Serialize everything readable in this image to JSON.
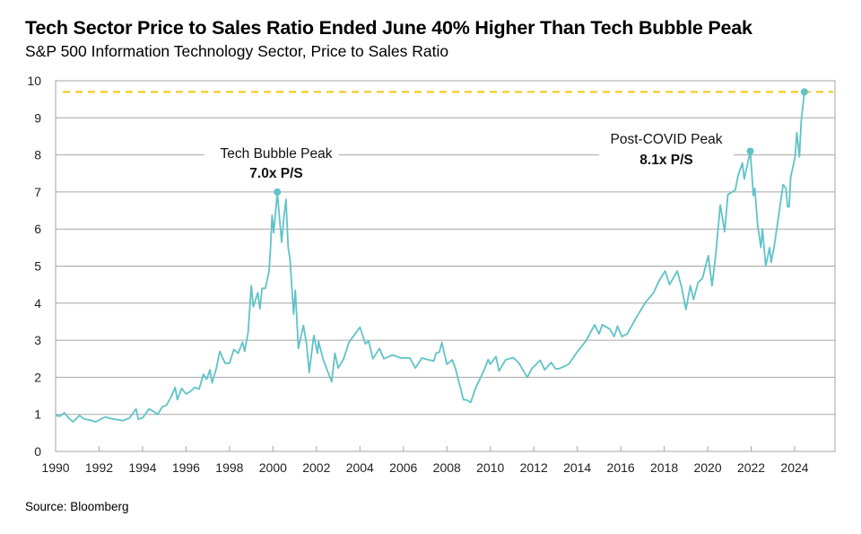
{
  "header": {
    "title": "Tech Sector Price to Sales Ratio Ended June 40% Higher Than Tech Bubble Peak",
    "subtitle": "S&P 500 Information Technology Sector, Price to Sales Ratio"
  },
  "footer": {
    "source": "Source: Bloomberg"
  },
  "colors": {
    "line": "#5fc3c7",
    "reference_line": "#f2c80f",
    "grid": "#a6a6a6"
  },
  "chart_data": {
    "type": "line",
    "title": "Tech Sector Price to Sales Ratio Ended June 40% Higher Than Tech Bubble Peak",
    "xlabel": "",
    "ylabel": "",
    "xlim": [
      1990,
      2026
    ],
    "ylim": [
      0,
      10
    ],
    "grid": "horizontal",
    "x_ticks": [
      "1990",
      "1992",
      "1994",
      "1996",
      "1998",
      "2000",
      "2002",
      "2004",
      "2006",
      "2008",
      "2010",
      "2012",
      "2014",
      "2016",
      "2018",
      "2020",
      "2022",
      "2024"
    ],
    "y_ticks": [
      "0",
      "1",
      "2",
      "3",
      "4",
      "5",
      "6",
      "7",
      "8",
      "9",
      "10"
    ],
    "reference_line": {
      "y": 9.7,
      "style": "dashed"
    },
    "series": [
      {
        "points": [
          [
            1990.0,
            0.97
          ],
          [
            1990.2,
            0.95
          ],
          [
            1990.4,
            1.04
          ],
          [
            1990.6,
            0.9
          ],
          [
            1990.8,
            0.8
          ],
          [
            1991.1,
            0.97
          ],
          [
            1991.3,
            0.88
          ],
          [
            1991.6,
            0.84
          ],
          [
            1991.85,
            0.8
          ],
          [
            1992.1,
            0.88
          ],
          [
            1992.3,
            0.93
          ],
          [
            1992.6,
            0.88
          ],
          [
            1992.9,
            0.85
          ],
          [
            1993.1,
            0.83
          ],
          [
            1993.4,
            0.9
          ],
          [
            1993.7,
            1.15
          ],
          [
            1993.8,
            0.87
          ],
          [
            1994.0,
            0.9
          ],
          [
            1994.3,
            1.15
          ],
          [
            1994.5,
            1.08
          ],
          [
            1994.7,
            1.0
          ],
          [
            1994.9,
            1.2
          ],
          [
            1995.1,
            1.25
          ],
          [
            1995.3,
            1.45
          ],
          [
            1995.5,
            1.73
          ],
          [
            1995.6,
            1.4
          ],
          [
            1995.8,
            1.7
          ],
          [
            1996.0,
            1.55
          ],
          [
            1996.2,
            1.62
          ],
          [
            1996.4,
            1.73
          ],
          [
            1996.6,
            1.68
          ],
          [
            1996.8,
            2.08
          ],
          [
            1996.95,
            1.95
          ],
          [
            1997.1,
            2.2
          ],
          [
            1997.2,
            1.85
          ],
          [
            1997.4,
            2.25
          ],
          [
            1997.55,
            2.7
          ],
          [
            1997.8,
            2.38
          ],
          [
            1998.0,
            2.38
          ],
          [
            1998.2,
            2.75
          ],
          [
            1998.4,
            2.65
          ],
          [
            1998.6,
            2.95
          ],
          [
            1998.7,
            2.7
          ],
          [
            1998.86,
            3.22
          ],
          [
            1999.0,
            4.47
          ],
          [
            1999.1,
            3.9
          ],
          [
            1999.3,
            4.28
          ],
          [
            1999.4,
            3.85
          ],
          [
            1999.5,
            4.4
          ],
          [
            1999.65,
            4.4
          ],
          [
            1999.82,
            4.87
          ],
          [
            1999.88,
            5.4
          ],
          [
            1999.96,
            6.37
          ],
          [
            2000.03,
            5.9
          ],
          [
            2000.2,
            6.97
          ],
          [
            2000.4,
            5.65
          ],
          [
            2000.5,
            6.3
          ],
          [
            2000.6,
            6.8
          ],
          [
            2000.7,
            5.5
          ],
          [
            2000.78,
            5.2
          ],
          [
            2000.95,
            3.7
          ],
          [
            2001.03,
            4.35
          ],
          [
            2001.17,
            2.78
          ],
          [
            2001.4,
            3.4
          ],
          [
            2001.55,
            2.88
          ],
          [
            2001.67,
            2.13
          ],
          [
            2001.88,
            3.13
          ],
          [
            2002.05,
            2.65
          ],
          [
            2002.1,
            2.97
          ],
          [
            2002.3,
            2.5
          ],
          [
            2002.7,
            1.88
          ],
          [
            2002.85,
            2.65
          ],
          [
            2003.0,
            2.25
          ],
          [
            2003.25,
            2.5
          ],
          [
            2003.5,
            2.95
          ],
          [
            2004.0,
            3.35
          ],
          [
            2004.25,
            2.9
          ],
          [
            2004.4,
            2.98
          ],
          [
            2004.6,
            2.5
          ],
          [
            2004.9,
            2.78
          ],
          [
            2005.1,
            2.5
          ],
          [
            2005.5,
            2.6
          ],
          [
            2005.9,
            2.52
          ],
          [
            2006.3,
            2.52
          ],
          [
            2006.55,
            2.25
          ],
          [
            2006.85,
            2.52
          ],
          [
            2007.1,
            2.48
          ],
          [
            2007.4,
            2.44
          ],
          [
            2007.5,
            2.65
          ],
          [
            2007.65,
            2.68
          ],
          [
            2007.77,
            2.94
          ],
          [
            2008.0,
            2.35
          ],
          [
            2008.25,
            2.47
          ],
          [
            2008.4,
            2.23
          ],
          [
            2008.76,
            1.4
          ],
          [
            2008.95,
            1.38
          ],
          [
            2009.1,
            1.32
          ],
          [
            2009.3,
            1.68
          ],
          [
            2009.72,
            2.2
          ],
          [
            2009.9,
            2.48
          ],
          [
            2010.0,
            2.35
          ],
          [
            2010.26,
            2.56
          ],
          [
            2010.4,
            2.17
          ],
          [
            2010.7,
            2.47
          ],
          [
            2011.05,
            2.53
          ],
          [
            2011.3,
            2.4
          ],
          [
            2011.7,
            2.0
          ],
          [
            2011.9,
            2.23
          ],
          [
            2012.3,
            2.46
          ],
          [
            2012.5,
            2.2
          ],
          [
            2012.8,
            2.4
          ],
          [
            2013.0,
            2.23
          ],
          [
            2013.15,
            2.23
          ],
          [
            2013.6,
            2.35
          ],
          [
            2013.98,
            2.67
          ],
          [
            2014.4,
            2.98
          ],
          [
            2014.8,
            3.42
          ],
          [
            2015.0,
            3.17
          ],
          [
            2015.15,
            3.42
          ],
          [
            2015.5,
            3.3
          ],
          [
            2015.7,
            3.1
          ],
          [
            2015.85,
            3.38
          ],
          [
            2016.05,
            3.1
          ],
          [
            2016.3,
            3.17
          ],
          [
            2016.7,
            3.6
          ],
          [
            2017.15,
            4.03
          ],
          [
            2017.5,
            4.27
          ],
          [
            2017.76,
            4.6
          ],
          [
            2018.04,
            4.87
          ],
          [
            2018.25,
            4.5
          ],
          [
            2018.6,
            4.87
          ],
          [
            2018.8,
            4.43
          ],
          [
            2019.0,
            3.83
          ],
          [
            2019.2,
            4.47
          ],
          [
            2019.35,
            4.1
          ],
          [
            2019.55,
            4.55
          ],
          [
            2019.76,
            4.67
          ],
          [
            2020.03,
            5.28
          ],
          [
            2020.2,
            4.47
          ],
          [
            2020.37,
            5.3
          ],
          [
            2020.58,
            6.65
          ],
          [
            2020.78,
            5.93
          ],
          [
            2020.93,
            6.93
          ],
          [
            2021.27,
            7.05
          ],
          [
            2021.4,
            7.45
          ],
          [
            2021.6,
            7.78
          ],
          [
            2021.68,
            7.35
          ],
          [
            2021.96,
            8.1
          ],
          [
            2022.1,
            6.9
          ],
          [
            2022.17,
            7.1
          ],
          [
            2022.3,
            6.1
          ],
          [
            2022.45,
            5.5
          ],
          [
            2022.52,
            6.0
          ],
          [
            2022.67,
            5.0
          ],
          [
            2022.85,
            5.5
          ],
          [
            2022.92,
            5.1
          ],
          [
            2023.05,
            5.5
          ],
          [
            2023.2,
            6.1
          ],
          [
            2023.47,
            7.2
          ],
          [
            2023.6,
            7.1
          ],
          [
            2023.68,
            6.6
          ],
          [
            2023.75,
            6.6
          ],
          [
            2023.82,
            7.4
          ],
          [
            2024.02,
            7.95
          ],
          [
            2024.1,
            8.6
          ],
          [
            2024.22,
            7.95
          ],
          [
            2024.3,
            8.9
          ],
          [
            2024.45,
            9.7
          ]
        ]
      }
    ],
    "annotations": [
      {
        "label": "Tech Bubble Peak",
        "value_label": "7.0x P/S",
        "x": 2000.2,
        "y": 7.0
      },
      {
        "label": "Post-COVID Peak",
        "value_label": "8.1x P/S",
        "x": 2021.96,
        "y": 8.1
      },
      {
        "x": 2024.45,
        "y": 9.7
      }
    ]
  }
}
